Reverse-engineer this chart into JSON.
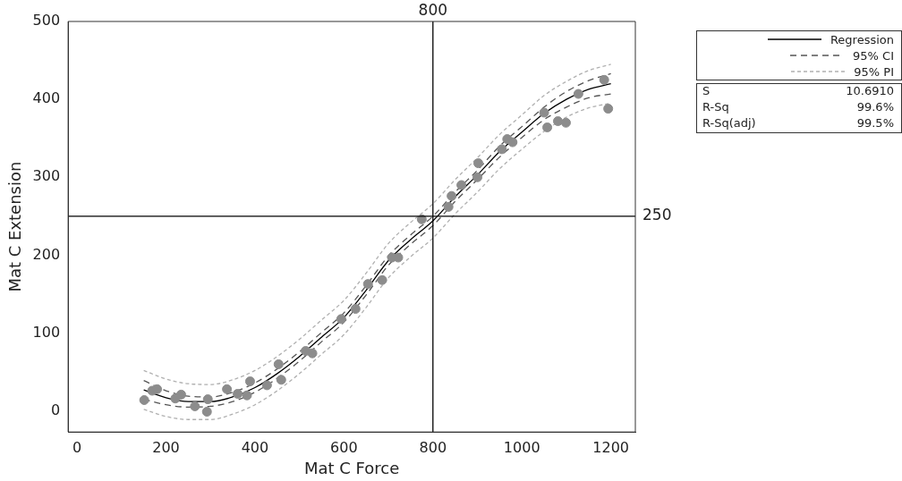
{
  "chart_data": {
    "type": "scatter",
    "xlabel": "Mat C Force",
    "ylabel": "Mat C Extension",
    "xlim": [
      -20,
      1255
    ],
    "ylim": [
      -27,
      500
    ],
    "xticks": [
      0,
      200,
      400,
      600,
      800,
      1000,
      1200
    ],
    "yticks": [
      0,
      100,
      200,
      300,
      400,
      500
    ],
    "grid": false,
    "legend": "top right",
    "marker": "circle",
    "series": [
      {
        "color": "#8c8c8c",
        "x": [
          151,
          169,
          180,
          221,
          234,
          265,
          294,
          292,
          337,
          361,
          382,
          389,
          427,
          453,
          459,
          514,
          529,
          594,
          626,
          654,
          686,
          708,
          722,
          775,
          835,
          842,
          864,
          900,
          902,
          955,
          967,
          979,
          1050,
          1057,
          1081,
          1099,
          1127,
          1185,
          1194
        ],
        "values": [
          14,
          26,
          28,
          16,
          21,
          6,
          15,
          -1,
          28,
          22,
          20,
          38,
          33,
          60,
          40,
          77,
          74,
          118,
          131,
          163,
          168,
          197,
          197,
          246,
          262,
          276,
          290,
          300,
          318,
          336,
          349,
          345,
          383,
          364,
          372,
          370,
          407,
          425,
          388
        ]
      },
      {
        "type": "line",
        "name": "Regression",
        "color": "#000000",
        "line_style": "solid",
        "marker": "none",
        "x": [
          150,
          200,
          250,
          300,
          350,
          400,
          450,
          500,
          550,
          600,
          650,
          700,
          750,
          800,
          850,
          900,
          950,
          1000,
          1050,
          1100,
          1150,
          1200
        ],
        "values": [
          27,
          17,
          12,
          12,
          18,
          30,
          48,
          70,
          95,
          120,
          155,
          193,
          220,
          244,
          275,
          303,
          333,
          358,
          382,
          400,
          413,
          420
        ]
      },
      {
        "type": "line",
        "name": "95% CI",
        "color": "#555555",
        "line_style": "dashed",
        "marker": "none",
        "x": [
          150,
          200,
          250,
          300,
          350,
          400,
          450,
          500,
          550,
          600,
          650,
          700,
          750,
          800,
          850,
          900,
          950,
          1000,
          1050,
          1100,
          1150,
          1200
        ],
        "values": [
          39,
          26,
          19,
          18,
          24,
          36,
          54,
          76,
          101,
          126,
          161,
          199,
          226,
          250,
          281,
          309,
          340,
          365,
          390,
          410,
          424,
          433
        ]
      },
      {
        "type": "line",
        "color": "#555555",
        "line_style": "dashed",
        "marker": "none",
        "x": [
          150,
          200,
          250,
          300,
          350,
          400,
          450,
          500,
          550,
          600,
          650,
          700,
          750,
          800,
          850,
          900,
          950,
          1000,
          1050,
          1100,
          1150,
          1200
        ],
        "values": [
          15,
          8,
          5,
          6,
          12,
          24,
          42,
          64,
          89,
          114,
          149,
          187,
          214,
          238,
          269,
          297,
          326,
          351,
          374,
          390,
          402,
          407
        ]
      },
      {
        "type": "line",
        "name": "95% PI",
        "color": "#b0b0b0",
        "line_style": "dotted",
        "marker": "none",
        "x": [
          150,
          200,
          250,
          300,
          350,
          400,
          450,
          500,
          550,
          600,
          650,
          700,
          750,
          800,
          850,
          900,
          950,
          1000,
          1050,
          1100,
          1150,
          1200
        ],
        "values": [
          52,
          41,
          35,
          34,
          40,
          52,
          70,
          92,
          117,
          142,
          177,
          215,
          242,
          266,
          297,
          325,
          355,
          380,
          405,
          423,
          437,
          445
        ]
      },
      {
        "type": "line",
        "color": "#b0b0b0",
        "line_style": "dotted",
        "marker": "none",
        "x": [
          150,
          200,
          250,
          300,
          350,
          400,
          450,
          500,
          550,
          600,
          650,
          700,
          750,
          800,
          850,
          900,
          950,
          1000,
          1050,
          1100,
          1150,
          1200
        ],
        "values": [
          2,
          -7,
          -11,
          -11,
          -4,
          8,
          26,
          48,
          73,
          98,
          133,
          171,
          198,
          222,
          253,
          281,
          311,
          336,
          359,
          377,
          389,
          395
        ]
      }
    ],
    "ref_lines": [
      {
        "axis": "x",
        "value": 800,
        "label": "800",
        "color": "#000000"
      },
      {
        "axis": "y",
        "value": 250,
        "label": "250",
        "color": "#000000"
      }
    ],
    "annotations": [
      "S",
      "10.6910",
      "R-Sq",
      "99.6%",
      "R-Sq(adj)",
      "99.5%"
    ]
  }
}
